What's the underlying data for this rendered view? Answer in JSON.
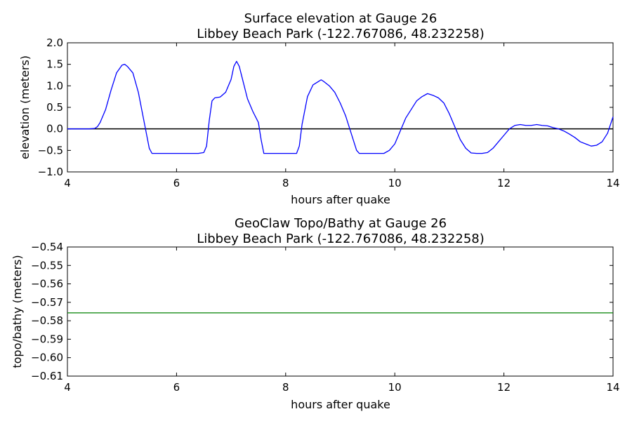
{
  "chart_data": [
    {
      "type": "line",
      "title": "Surface elevation at Gauge 26",
      "subtitle": "Libbey Beach Park  (-122.767086, 48.232258)",
      "xlabel": "hours after quake",
      "ylabel": "elevation (meters)",
      "xlim": [
        4,
        14
      ],
      "ylim": [
        -1.0,
        2.0
      ],
      "xticks": [
        "4",
        "6",
        "8",
        "10",
        "12",
        "14"
      ],
      "yticks": [
        "2.0",
        "1.5",
        "1.0",
        "0.5",
        "0.0",
        "−0.5",
        "−1.0"
      ],
      "grid": false,
      "reference_line": {
        "y": 0.0,
        "color": "#000000"
      },
      "series": [
        {
          "color": "#0000ff",
          "x": [
            4.0,
            4.2,
            4.4,
            4.5,
            4.55,
            4.6,
            4.7,
            4.8,
            4.9,
            5.0,
            5.05,
            5.1,
            5.2,
            5.3,
            5.4,
            5.5,
            5.55,
            5.6,
            5.8,
            6.0,
            6.2,
            6.4,
            6.5,
            6.55,
            6.6,
            6.65,
            6.7,
            6.8,
            6.9,
            7.0,
            7.05,
            7.1,
            7.15,
            7.2,
            7.3,
            7.4,
            7.5,
            7.55,
            7.6,
            7.65,
            8.0,
            8.2,
            8.25,
            8.3,
            8.4,
            8.5,
            8.6,
            8.65,
            8.7,
            8.8,
            8.9,
            9.0,
            9.1,
            9.2,
            9.3,
            9.35,
            9.4,
            9.6,
            9.8,
            9.9,
            10.0,
            10.1,
            10.2,
            10.3,
            10.4,
            10.5,
            10.6,
            10.7,
            10.8,
            10.9,
            11.0,
            11.1,
            11.2,
            11.3,
            11.4,
            11.5,
            11.6,
            11.7,
            11.8,
            11.9,
            12.0,
            12.1,
            12.2,
            12.3,
            12.4,
            12.5,
            12.6,
            12.7,
            12.8,
            12.9,
            13.0,
            13.1,
            13.2,
            13.3,
            13.4,
            13.5,
            13.6,
            13.7,
            13.8,
            13.9,
            14.0
          ],
          "y": [
            0.0,
            0.0,
            0.0,
            0.01,
            0.05,
            0.15,
            0.45,
            0.9,
            1.3,
            1.48,
            1.5,
            1.45,
            1.3,
            0.85,
            0.2,
            -0.45,
            -0.57,
            -0.57,
            -0.57,
            -0.57,
            -0.57,
            -0.57,
            -0.55,
            -0.4,
            0.2,
            0.65,
            0.72,
            0.74,
            0.85,
            1.15,
            1.45,
            1.57,
            1.45,
            1.2,
            0.7,
            0.4,
            0.15,
            -0.25,
            -0.57,
            -0.57,
            -0.57,
            -0.57,
            -0.4,
            0.1,
            0.75,
            1.02,
            1.1,
            1.14,
            1.1,
            1.0,
            0.85,
            0.6,
            0.3,
            -0.1,
            -0.5,
            -0.57,
            -0.57,
            -0.57,
            -0.57,
            -0.5,
            -0.35,
            -0.05,
            0.25,
            0.45,
            0.65,
            0.75,
            0.82,
            0.78,
            0.72,
            0.6,
            0.35,
            0.05,
            -0.25,
            -0.45,
            -0.56,
            -0.57,
            -0.57,
            -0.55,
            -0.45,
            -0.3,
            -0.15,
            0.0,
            0.08,
            0.1,
            0.08,
            0.08,
            0.1,
            0.08,
            0.07,
            0.03,
            0.0,
            -0.05,
            -0.12,
            -0.2,
            -0.3,
            -0.35,
            -0.4,
            -0.38,
            -0.3,
            -0.1,
            0.28
          ]
        }
      ]
    },
    {
      "type": "line",
      "title": "GeoClaw Topo/Bathy at Gauge 26",
      "subtitle": "Libbey Beach Park  (-122.767086, 48.232258)",
      "xlabel": "hours after quake",
      "ylabel": "topo/bathy (meters)",
      "xlim": [
        4,
        14
      ],
      "ylim": [
        -0.61,
        -0.54
      ],
      "xticks": [
        "4",
        "6",
        "8",
        "10",
        "12",
        "14"
      ],
      "yticks": [
        "−0.54",
        "−0.55",
        "−0.56",
        "−0.57",
        "−0.58",
        "−0.59",
        "−0.60",
        "−0.61"
      ],
      "grid": false,
      "series": [
        {
          "color": "#008000",
          "x": [
            4,
            14
          ],
          "y": [
            -0.5757,
            -0.5757
          ]
        }
      ]
    }
  ]
}
